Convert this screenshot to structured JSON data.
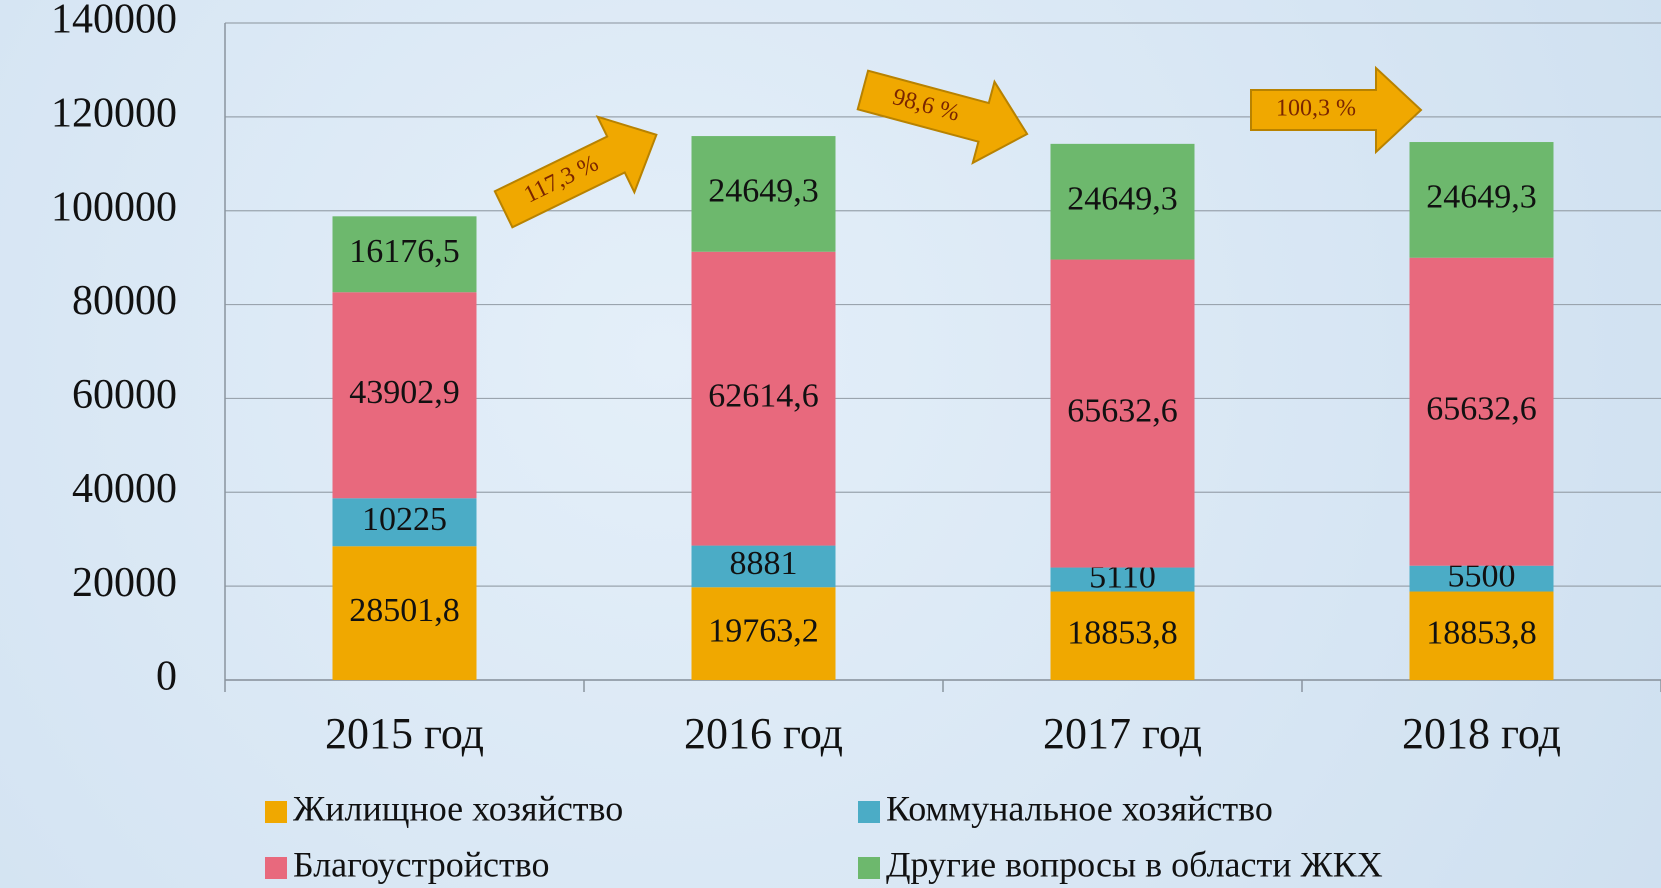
{
  "chart_data": {
    "type": "stacked_bar",
    "categories": [
      "2015 год",
      "2016 год",
      "2017 год",
      "2018 год"
    ],
    "series": [
      {
        "name": "Жилищное хозяйство",
        "color": "#f0a800",
        "values": [
          28501.8,
          19763.2,
          18853.8,
          18853.8
        ],
        "value_labels": [
          "28501,8",
          "19763,2",
          "18853,8",
          "18853,8"
        ]
      },
      {
        "name": "Коммунальное хозяйство",
        "color": "#4bacc6",
        "values": [
          10225,
          8881,
          5110,
          5500
        ],
        "value_labels": [
          "10225",
          "8881",
          "5110",
          "5500"
        ]
      },
      {
        "name": "Благоустройство",
        "color": "#e8697d",
        "values": [
          43902.9,
          62614.6,
          65632.6,
          65632.6
        ],
        "value_labels": [
          "43902,9",
          "62614,6",
          "65632,6",
          "65632,6"
        ]
      },
      {
        "name": "Другие вопросы в области ЖКХ",
        "color": "#6db86d",
        "values": [
          16176.5,
          24649.3,
          24649.3,
          24649.3
        ],
        "value_labels": [
          "16176,5",
          "24649,3",
          "24649,3",
          "24649,3"
        ]
      }
    ],
    "annotations": [
      "117,3 %",
      "98,6 %",
      "100,3 %"
    ],
    "ylim": [
      0,
      140000
    ],
    "yticks": [
      0,
      20000,
      40000,
      60000,
      80000,
      100000,
      120000,
      140000
    ],
    "grid": true,
    "legend": "bottom"
  }
}
